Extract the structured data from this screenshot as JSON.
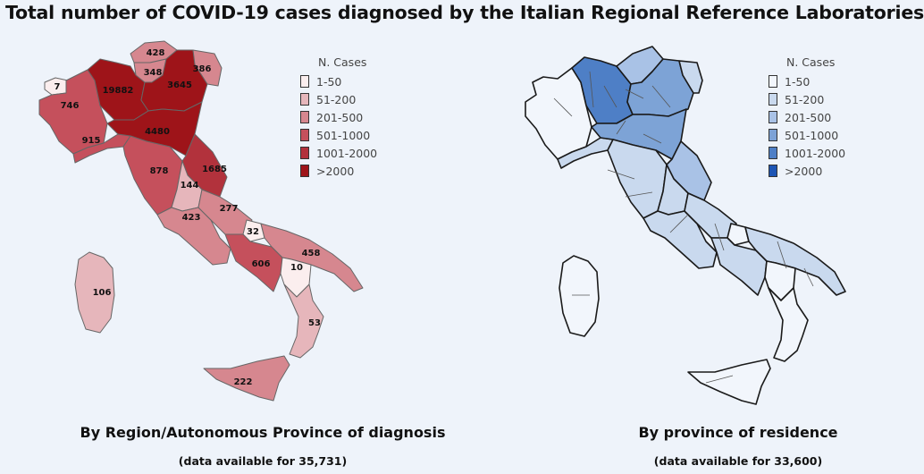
{
  "title": "Total number of COVID-19 cases diagnosed by the Italian Regional Reference Laboratories",
  "legend_title": "N. Cases",
  "legend_bins": [
    "1-50",
    "51-200",
    "201-500",
    "501-1000",
    "1001-2000",
    ">2000"
  ],
  "red_colors": [
    "#fbeeee",
    "#e6b6bb",
    "#d6878f",
    "#c5505c",
    "#b2323c",
    "#9e1419"
  ],
  "blue_colors": [
    "#f2f6fc",
    "#c9d9ee",
    "#a9c2e6",
    "#7da3d6",
    "#4e7fc6",
    "#1d55b4"
  ],
  "left_map": {
    "caption": "By Region/Autonomous Province of diagnosis",
    "subcaption": "(data available for 35,731)",
    "regions": [
      {
        "name": "Aosta Valley",
        "value": "7",
        "bin": 0
      },
      {
        "name": "Piedmont",
        "value": "746",
        "bin": 3
      },
      {
        "name": "Lombardy",
        "value": "19882",
        "bin": 5
      },
      {
        "name": "Bolzano",
        "value": "428",
        "bin": 2
      },
      {
        "name": "Trento",
        "value": "348",
        "bin": 2
      },
      {
        "name": "Veneto",
        "value": "3645",
        "bin": 5
      },
      {
        "name": "Friuli Venezia Giulia",
        "value": "386",
        "bin": 2
      },
      {
        "name": "Liguria",
        "value": "915",
        "bin": 3
      },
      {
        "name": "Emilia-Romagna",
        "value": "4480",
        "bin": 5
      },
      {
        "name": "Tuscany",
        "value": "878",
        "bin": 3
      },
      {
        "name": "Umbria",
        "value": "144",
        "bin": 1
      },
      {
        "name": "Marche",
        "value": "1685",
        "bin": 4
      },
      {
        "name": "Lazio",
        "value": "423",
        "bin": 2
      },
      {
        "name": "Abruzzo",
        "value": "277",
        "bin": 2
      },
      {
        "name": "Molise",
        "value": "32",
        "bin": 0
      },
      {
        "name": "Campania",
        "value": "606",
        "bin": 3
      },
      {
        "name": "Apulia",
        "value": "458",
        "bin": 2
      },
      {
        "name": "Basilicata",
        "value": "10",
        "bin": 0
      },
      {
        "name": "Calabria",
        "value": "53",
        "bin": 1
      },
      {
        "name": "Sicily",
        "value": "222",
        "bin": 2
      },
      {
        "name": "Sardinia",
        "value": "106",
        "bin": 1
      }
    ]
  },
  "right_map": {
    "caption": "By province of residence",
    "subcaption": "(data available for 33,600)"
  }
}
